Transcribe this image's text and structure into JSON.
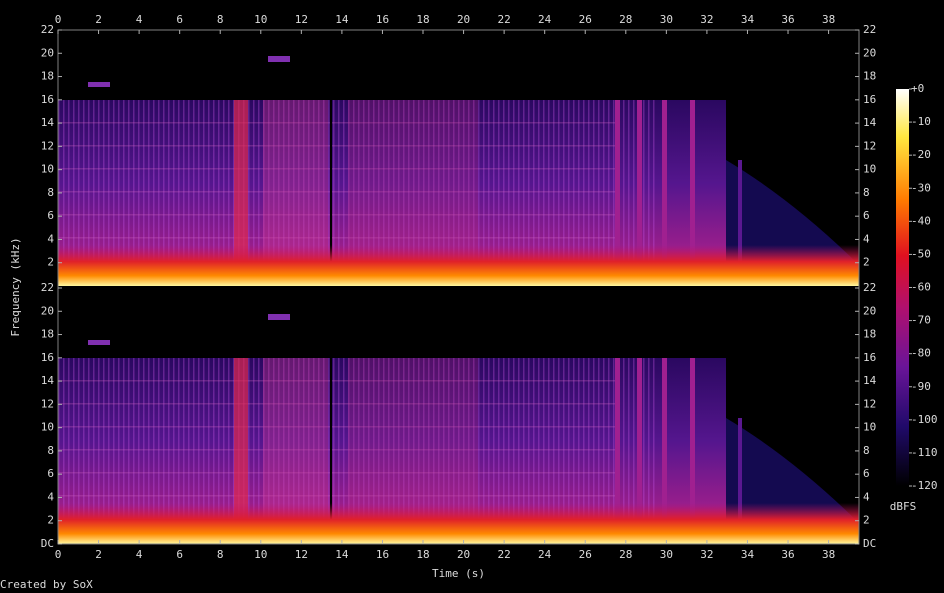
{
  "chart_data": [
    {
      "type": "spectrogram",
      "xlim": [
        0,
        39.5
      ],
      "xticks": [
        0,
        2,
        4,
        6,
        8,
        10,
        12,
        14,
        16,
        18,
        20,
        22,
        24,
        26,
        28,
        30,
        32,
        34,
        36,
        38
      ],
      "ylim": [
        0,
        22
      ],
      "yticks": [
        2,
        4,
        6,
        8,
        10,
        12,
        14,
        16,
        18,
        20,
        22
      ]
    },
    {
      "type": "spectrogram",
      "xlabel": "Time (s)",
      "xlim": [
        0,
        39.5
      ],
      "xticks": [
        0,
        2,
        4,
        6,
        8,
        10,
        12,
        14,
        16,
        18,
        20,
        22,
        24,
        26,
        28,
        30,
        32,
        34,
        36,
        38
      ],
      "ylim": [
        0,
        22
      ],
      "yticks": [
        {
          "value": 0,
          "label": "DC"
        },
        2,
        4,
        6,
        8,
        10,
        12,
        14,
        16,
        18,
        20,
        22
      ]
    }
  ],
  "ylabel": "Frequency (kHz)",
  "colorbar": {
    "label": "dBFS",
    "zlim": [
      -120,
      0
    ],
    "zticks": [
      {
        "value": 0,
        "label": "+0"
      },
      -10,
      -20,
      -30,
      -40,
      -50,
      -60,
      -70,
      -80,
      -90,
      -100,
      -110,
      -120
    ]
  },
  "footer": "Created by SoX"
}
